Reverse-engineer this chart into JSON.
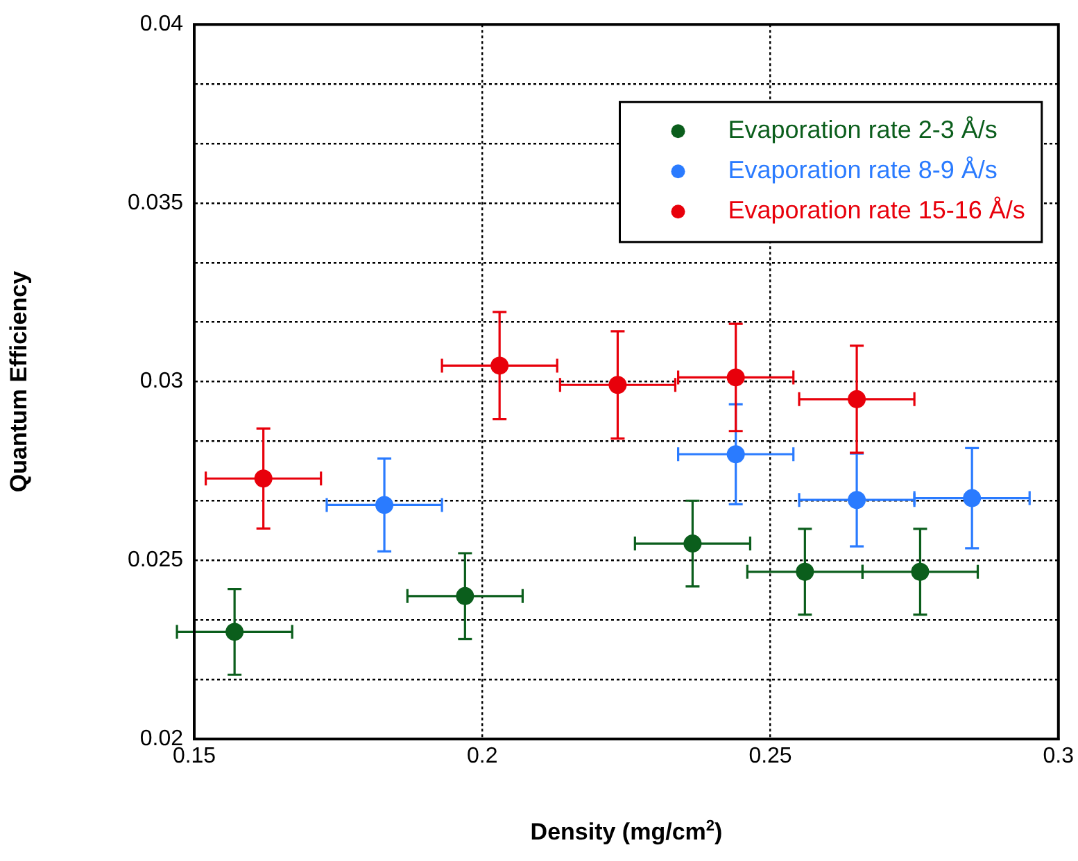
{
  "chart_data": {
    "type": "scatter",
    "xlabel": "Density (mg/cm$^{2}$)",
    "ylabel": "Quantum Efficiency",
    "xlim": [
      0.15,
      0.3
    ],
    "xticks": [
      0.15,
      0.2,
      0.25,
      0.3
    ],
    "ylim": [
      0.02,
      0.04
    ],
    "yticks": [
      0.02,
      {
        "value": 0.021667,
        "label": null
      },
      {
        "value": 0.023333,
        "label": null
      },
      0.025,
      {
        "value": 0.026667,
        "label": null
      },
      {
        "value": 0.028333,
        "label": null
      },
      0.03,
      {
        "value": 0.031667,
        "label": null
      },
      {
        "value": 0.033333,
        "label": null
      },
      0.035,
      {
        "value": 0.036667,
        "label": null
      },
      {
        "value": 0.038333,
        "label": null
      },
      0.04
    ],
    "grid": true,
    "legend": "top right",
    "marker": "circle",
    "series": [
      {
        "name": "Evaporation rate 2-3 Å/s",
        "color": "#0b5e1c",
        "x": [
          0.157,
          0.197,
          0.2365,
          0.256,
          0.276
        ],
        "values": [
          0.023,
          0.024,
          0.02547,
          0.02468,
          0.02468
        ],
        "errors": [
          0.0012,
          0.0012,
          0.0012,
          0.0012,
          0.0012
        ],
        "xerrors": [
          0.01,
          0.01,
          0.01,
          0.01,
          0.01
        ]
      },
      {
        "name": "Evaporation rate 8-9 Å/s",
        "color": "#2a7bff",
        "x": [
          0.183,
          0.244,
          0.265,
          0.285
        ],
        "values": [
          0.02655,
          0.02797,
          0.02669,
          0.02674
        ],
        "errors": [
          0.0013,
          0.0014,
          0.0013,
          0.0014
        ],
        "xerrors": [
          0.01,
          0.01,
          0.01,
          0.01
        ]
      },
      {
        "name": "Evaporation rate 15-16 Å/s",
        "color": "#e8000b",
        "x": [
          0.162,
          0.203,
          0.2235,
          0.244,
          0.265
        ],
        "values": [
          0.02729,
          0.03045,
          0.02991,
          0.03012,
          0.02951
        ],
        "errors": [
          0.0014,
          0.0015,
          0.0015,
          0.0015,
          0.0015
        ],
        "xerrors": [
          0.01,
          0.01,
          0.01,
          0.01,
          0.01
        ]
      }
    ]
  }
}
